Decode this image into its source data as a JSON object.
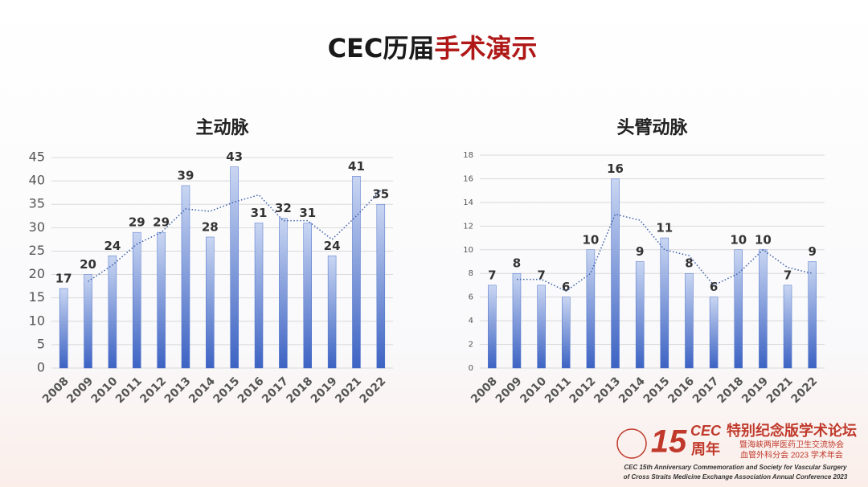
{
  "slide_title": [
    "CEC历届",
    "手术演示"
  ],
  "chart_data": [
    {
      "type": "bar",
      "title": "主动脉",
      "categories": [
        "2008",
        "2009",
        "2010",
        "2011",
        "2012",
        "2013",
        "2014",
        "2015",
        "2016",
        "2017",
        "2018",
        "2019",
        "2021",
        "2022"
      ],
      "series": [
        {
          "color": "#4a6fc9",
          "values": [
            17,
            20,
            24,
            29,
            29,
            39,
            28,
            43,
            31,
            32,
            31,
            24,
            41,
            35
          ]
        },
        {
          "color": "#3b5fa8",
          "style": "dotted",
          "values": [
            null,
            18.5,
            22,
            26.5,
            29,
            34,
            33.5,
            35.5,
            37,
            31.5,
            31.5,
            27.5,
            32.5,
            38
          ]
        }
      ],
      "ylim": [
        0,
        45
      ],
      "yticks": [
        0,
        5,
        10,
        15,
        20,
        25,
        30,
        35,
        40,
        45
      ],
      "grid": true
    },
    {
      "type": "bar",
      "title": "头臂动脉",
      "categories": [
        "2008",
        "2009",
        "2010",
        "2011",
        "2012",
        "2013",
        "2014",
        "2015",
        "2016",
        "2017",
        "2018",
        "2019",
        "2021",
        "2022"
      ],
      "series": [
        {
          "color": "#4a6fc9",
          "values": [
            7,
            8,
            7,
            6,
            10,
            16,
            9,
            11,
            8,
            6,
            10,
            10,
            7,
            9
          ]
        },
        {
          "color": "#3b5fa8",
          "style": "dotted",
          "values": [
            null,
            7.5,
            7.5,
            6.5,
            8,
            13,
            12.5,
            10,
            9.5,
            7,
            8,
            10,
            8.5,
            8
          ]
        }
      ],
      "ylim": [
        0,
        18
      ],
      "yticks": [
        0,
        2,
        4,
        6,
        8,
        10,
        12,
        14,
        16,
        18
      ],
      "grid": true
    }
  ],
  "footer": {
    "number": "15",
    "brand": "CEC",
    "years": "周年",
    "forum": "特别纪念版学术论坛",
    "line1": "暨海峡两岸医药卫生交流协会",
    "line2": "血管外科分会 2023 学术年会",
    "en1": "CEC 15th Anniversary Commemoration and Society for Vascular Surgery",
    "en2": "of Cross Straits Medicine Exchange Association Annual Conference 2023"
  }
}
